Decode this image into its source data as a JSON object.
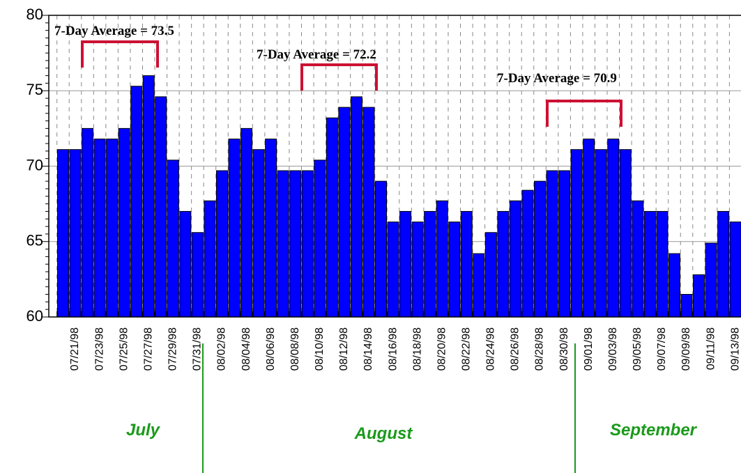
{
  "chart_data": {
    "type": "bar",
    "categories": [
      null,
      "07/21/98",
      null,
      "07/23/98",
      null,
      "07/25/98",
      null,
      "07/27/98",
      null,
      "07/29/98",
      null,
      "07/31/98",
      null,
      "08/02/98",
      null,
      "08/04/98",
      null,
      "08/06/98",
      null,
      "08/08/98",
      null,
      "08/10/98",
      null,
      "08/12/98",
      null,
      "08/14/98",
      null,
      "08/16/98",
      null,
      "08/18/98",
      null,
      "08/20/98",
      null,
      "08/22/98",
      null,
      "08/24/98",
      null,
      "08/26/98",
      null,
      "08/28/98",
      null,
      "08/30/98",
      null,
      "09/01/98",
      null,
      "09/03/98",
      null,
      "09/05/98",
      null,
      "09/07/98",
      null,
      "09/09/98",
      null,
      "09/11/98",
      null,
      "09/13/98",
      null
    ],
    "values": [
      71.1,
      71.1,
      72.5,
      71.8,
      71.8,
      72.5,
      75.3,
      76.0,
      74.6,
      70.4,
      67.0,
      65.6,
      67.7,
      69.7,
      71.8,
      72.5,
      71.1,
      71.8,
      69.7,
      69.7,
      69.7,
      70.4,
      73.2,
      73.9,
      74.6,
      73.9,
      69.0,
      66.3,
      67.0,
      66.3,
      67.0,
      67.7,
      66.3,
      67.0,
      64.2,
      65.6,
      67.0,
      67.7,
      68.4,
      69.0,
      69.7,
      69.7,
      71.1,
      71.8,
      71.1,
      71.8,
      71.1,
      67.7,
      67.0,
      67.0,
      64.2,
      61.5,
      62.8,
      64.9,
      67.0,
      66.3,
      67.0
    ],
    "color": "#0000ff",
    "ylim": [
      60,
      80
    ],
    "yticks": [
      60,
      65,
      70,
      75,
      80
    ],
    "grid": true,
    "annotations": [
      "7-Day Average = 73.5",
      "7-Day Average = 72.2",
      "7-Day Average = 70.9"
    ],
    "month_labels": [
      "July",
      "August",
      "September"
    ]
  }
}
